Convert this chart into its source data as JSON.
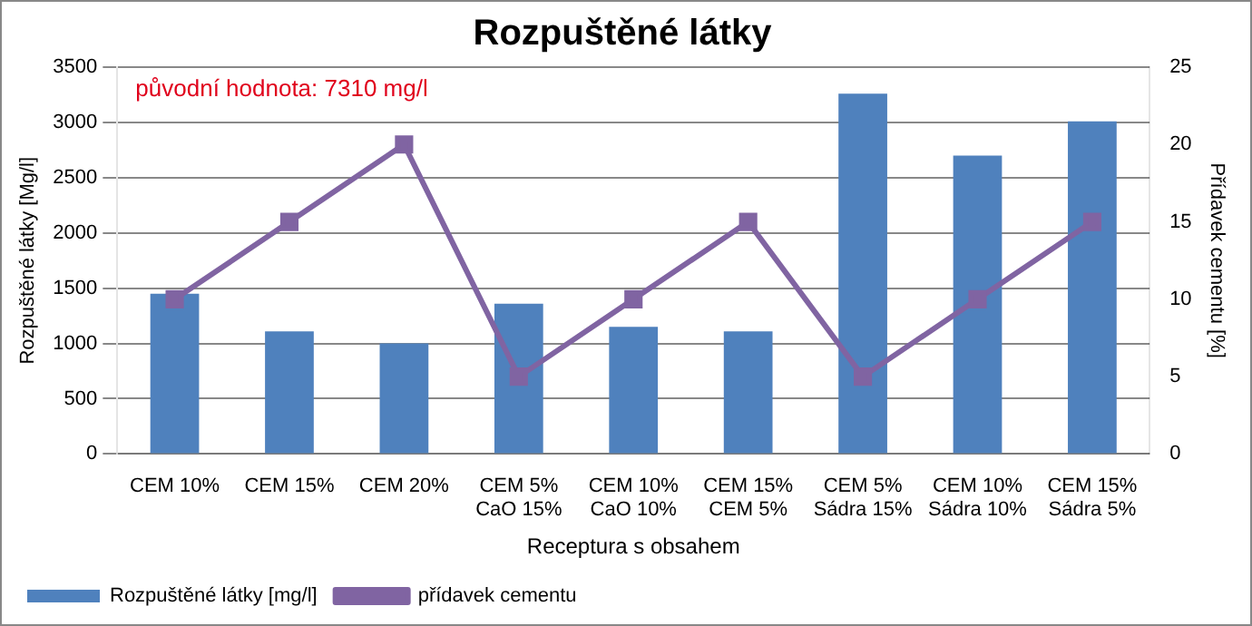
{
  "chart_data": {
    "type": "bar",
    "title": "Rozpuštěné látky",
    "xlabel": "Receptura s obsahem",
    "ylabel": "Rozpuštěné látky [Mg/l]",
    "y2label": "Přídavek cementu [%]",
    "categories": [
      "CEM 10%",
      "CEM 15%",
      "CEM 20%",
      "CEM 5%\nCaO 15%",
      "CEM 10%\nCaO 10%",
      "CEM 15%\nCEM 5%",
      "CEM 5%\nSádra 15%",
      "CEM 10%\nSádra 10%",
      "CEM 15%\nSádra 5%"
    ],
    "series": [
      {
        "name": "Rozpuštěné látky [mg/l]",
        "color": "#4f81bd",
        "values": [
          1450,
          1110,
          1000,
          1360,
          1150,
          1110,
          3260,
          2700,
          3010
        ]
      },
      {
        "name": "přídavek cementu",
        "type": "line",
        "axis": "y2",
        "color": "#8064a2",
        "marker": "square",
        "values": [
          10,
          15,
          20,
          5,
          10,
          15,
          5,
          10,
          15
        ]
      }
    ],
    "ylim": [
      0,
      3500
    ],
    "yticks": [
      0,
      500,
      1000,
      1500,
      2000,
      2500,
      3000,
      3500
    ],
    "y2lim": [
      0,
      25
    ],
    "y2ticks": [
      0,
      5,
      10,
      15,
      20,
      25
    ],
    "annotations": [
      "původní hodnota: 7310 mg/l"
    ],
    "grid": "y",
    "legend": "bottom left"
  }
}
